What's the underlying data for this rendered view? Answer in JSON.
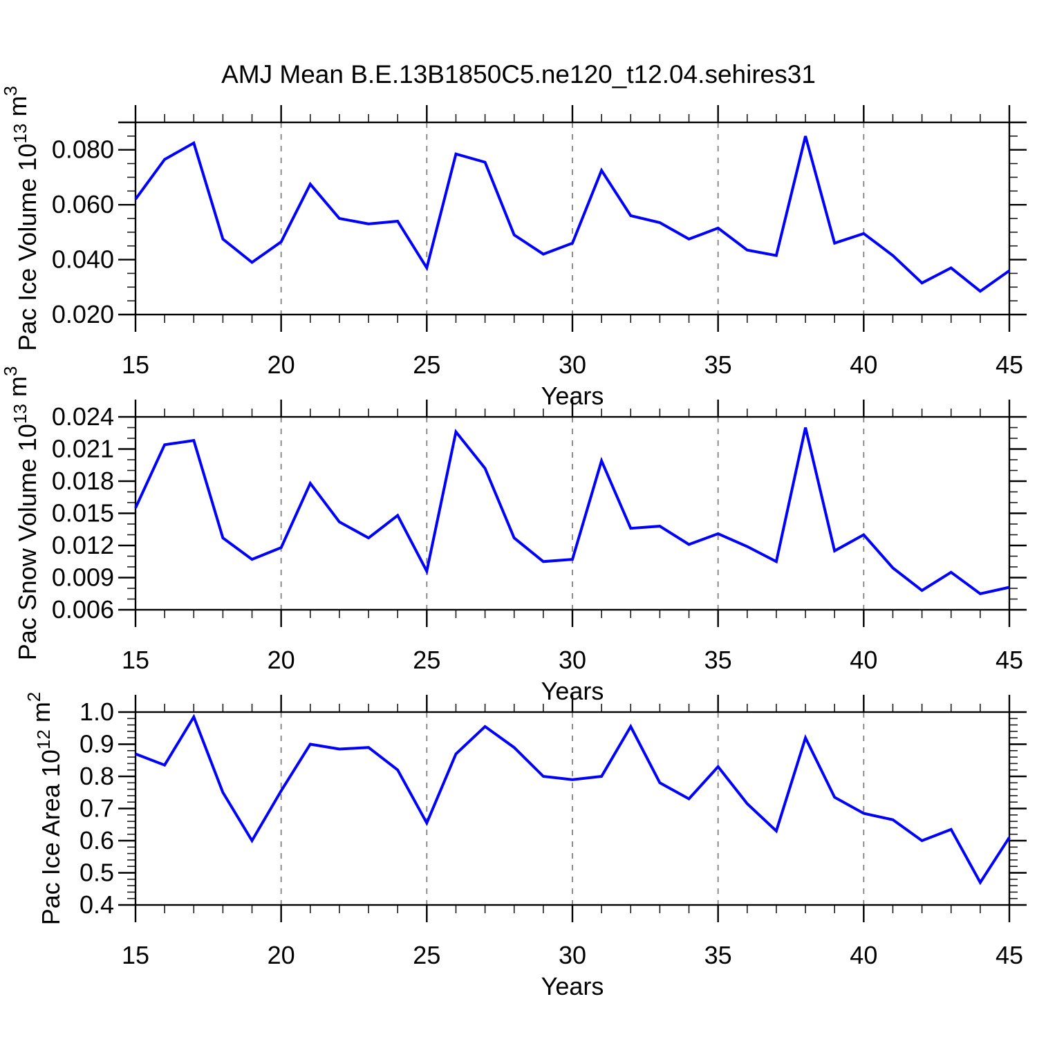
{
  "title": "AMJ Mean B.E.13B1850C5.ne120_t12.04.sehires31",
  "colors": {
    "line": "#0000ff",
    "frame": "#000000",
    "minor_tick": "#1a1a1a",
    "grid": "#808080",
    "text": "#000000",
    "background": "#ffffff"
  },
  "chart_data": [
    {
      "type": "line",
      "panel": "pac-ice-volume",
      "xlabel": "Years",
      "ylabel": "Pac Ice Volume 10¹³ m³",
      "ylabel_parts": [
        {
          "text": "Pac Ice Volume 10",
          "sup": false
        },
        {
          "text": "13",
          "sup": true
        },
        {
          "text": " m",
          "sup": false
        },
        {
          "text": "3",
          "sup": true
        }
      ],
      "x": [
        15,
        16,
        17,
        18,
        19,
        20,
        21,
        22,
        23,
        24,
        25,
        26,
        27,
        28,
        29,
        30,
        31,
        32,
        33,
        34,
        35,
        36,
        37,
        38,
        39,
        40,
        41,
        42,
        43,
        44,
        45
      ],
      "series": [
        {
          "name": "Pac Ice Volume",
          "values": [
            0.062,
            0.0765,
            0.0825,
            0.0475,
            0.039,
            0.0465,
            0.0675,
            0.055,
            0.053,
            0.054,
            0.037,
            0.0785,
            0.0755,
            0.049,
            0.042,
            0.046,
            0.0725,
            0.056,
            0.0535,
            0.0475,
            0.0515,
            0.0435,
            0.0415,
            0.085,
            0.046,
            0.0495,
            0.0415,
            0.0315,
            0.037,
            0.0285,
            0.036
          ]
        }
      ],
      "xlim": [
        15,
        45
      ],
      "ylim": [
        0.02,
        0.09
      ],
      "x_tick_values": [
        15,
        20,
        25,
        30,
        35,
        40,
        45
      ],
      "x_tick_labels": [
        "15",
        "20",
        "25",
        "30",
        "35",
        "40",
        "45"
      ],
      "x_minor_step": 1,
      "y_tick_values": [
        0.02,
        0.04,
        0.06,
        0.08
      ],
      "y_tick_labels": [
        "0.020",
        "0.040",
        "0.060",
        "0.080"
      ],
      "y_minor_step": 0.005,
      "grid_x": [
        20,
        25,
        30,
        35,
        40
      ],
      "grid_style": "dashed-vertical",
      "legend": false
    },
    {
      "type": "line",
      "panel": "pac-snow-volume",
      "xlabel": "Years",
      "ylabel": "Pac Snow Volume 10¹³ m³",
      "ylabel_parts": [
        {
          "text": "Pac Snow Volume 10",
          "sup": false
        },
        {
          "text": "13",
          "sup": true
        },
        {
          "text": " m",
          "sup": false
        },
        {
          "text": "3",
          "sup": true
        }
      ],
      "x": [
        15,
        16,
        17,
        18,
        19,
        20,
        21,
        22,
        23,
        24,
        25,
        26,
        27,
        28,
        29,
        30,
        31,
        32,
        33,
        34,
        35,
        36,
        37,
        38,
        39,
        40,
        41,
        42,
        43,
        44,
        45
      ],
      "series": [
        {
          "name": "Pac Snow Volume",
          "values": [
            0.0155,
            0.0214,
            0.0218,
            0.0127,
            0.0107,
            0.0118,
            0.0178,
            0.0142,
            0.0127,
            0.0148,
            0.0096,
            0.0226,
            0.0192,
            0.0127,
            0.0105,
            0.0107,
            0.0199,
            0.0136,
            0.0138,
            0.0121,
            0.0131,
            0.0119,
            0.0105,
            0.023,
            0.0115,
            0.013,
            0.0099,
            0.0078,
            0.0095,
            0.0075,
            0.0081
          ]
        }
      ],
      "xlim": [
        15,
        45
      ],
      "ylim": [
        0.006,
        0.024
      ],
      "x_tick_values": [
        15,
        20,
        25,
        30,
        35,
        40,
        45
      ],
      "x_tick_labels": [
        "15",
        "20",
        "25",
        "30",
        "35",
        "40",
        "45"
      ],
      "x_minor_step": 1,
      "y_tick_values": [
        0.006,
        0.009,
        0.012,
        0.015,
        0.018,
        0.021,
        0.024
      ],
      "y_tick_labels": [
        "0.006",
        "0.009",
        "0.012",
        "0.015",
        "0.018",
        "0.021",
        "0.024"
      ],
      "y_minor_step": 0.001,
      "grid_x": [
        20,
        25,
        30,
        35,
        40
      ],
      "grid_style": "dashed-vertical",
      "legend": false
    },
    {
      "type": "line",
      "panel": "pac-ice-area",
      "xlabel": "Years",
      "ylabel": "Pac Ice Area 10¹² m²",
      "ylabel_parts": [
        {
          "text": "Pac Ice Area 10",
          "sup": false
        },
        {
          "text": "12",
          "sup": true
        },
        {
          "text": " m",
          "sup": false
        },
        {
          "text": "2",
          "sup": true
        }
      ],
      "x": [
        15,
        16,
        17,
        18,
        19,
        20,
        21,
        22,
        23,
        24,
        25,
        26,
        27,
        28,
        29,
        30,
        31,
        32,
        33,
        34,
        35,
        36,
        37,
        38,
        39,
        40,
        41,
        42,
        43,
        44,
        45
      ],
      "series": [
        {
          "name": "Pac Ice Area",
          "values": [
            0.87,
            0.835,
            0.985,
            0.75,
            0.6,
            0.755,
            0.9,
            0.885,
            0.89,
            0.82,
            0.655,
            0.87,
            0.955,
            0.89,
            0.8,
            0.79,
            0.8,
            0.955,
            0.78,
            0.73,
            0.83,
            0.715,
            0.63,
            0.92,
            0.735,
            0.685,
            0.665,
            0.6,
            0.635,
            0.47,
            0.61
          ]
        }
      ],
      "xlim": [
        15,
        45
      ],
      "ylim": [
        0.4,
        1.0
      ],
      "x_tick_values": [
        15,
        20,
        25,
        30,
        35,
        40,
        45
      ],
      "x_tick_labels": [
        "15",
        "20",
        "25",
        "30",
        "35",
        "40",
        "45"
      ],
      "x_minor_step": 1,
      "y_tick_values": [
        0.4,
        0.5,
        0.6,
        0.7,
        0.8,
        0.9,
        1.0
      ],
      "y_tick_labels": [
        "0.4",
        "0.5",
        "0.6",
        "0.7",
        "0.8",
        "0.9",
        "1.0"
      ],
      "y_minor_step": 0.02,
      "grid_x": [
        20,
        25,
        30,
        35,
        40
      ],
      "grid_style": "dashed-vertical",
      "legend": false
    }
  ]
}
